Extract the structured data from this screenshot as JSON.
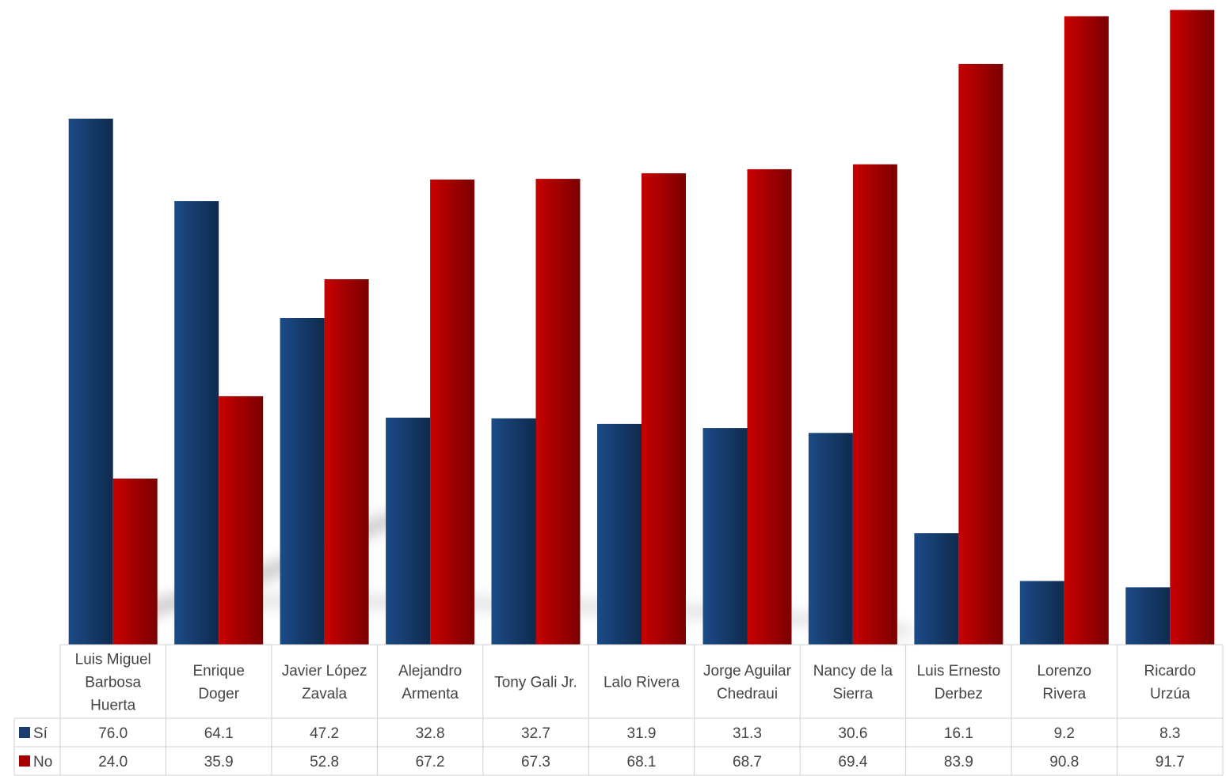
{
  "chart_data": {
    "type": "bar",
    "title": "",
    "xlabel": "",
    "ylabel": "",
    "ylim": [
      0,
      92
    ],
    "grid": false,
    "legend": "data-table",
    "categories": [
      [
        "Luis Miguel",
        "Barbosa",
        "Huerta"
      ],
      [
        "Enrique",
        "Doger"
      ],
      [
        "Javier López",
        "Zavala"
      ],
      [
        "Alejandro",
        "Armenta"
      ],
      [
        "Tony Gali Jr."
      ],
      [
        "Lalo Rivera"
      ],
      [
        "Jorge Aguilar",
        "Chedraui"
      ],
      [
        "Nancy de la",
        "Sierra"
      ],
      [
        "Luis Ernesto",
        "Derbez"
      ],
      [
        "Lorenzo",
        "Rivera"
      ],
      [
        "Ricardo",
        "Urzúa"
      ]
    ],
    "series": [
      {
        "name": "Sí",
        "color": "#1a3d6e",
        "values": [
          76.0,
          64.1,
          47.2,
          32.8,
          32.7,
          31.9,
          31.3,
          30.6,
          16.1,
          9.2,
          8.3
        ],
        "labels": [
          "76.0",
          "64.1",
          "47.2",
          "32.8",
          "32.7",
          "31.9",
          "31.3",
          "30.6",
          "16.1",
          "9.2",
          "8.3"
        ]
      },
      {
        "name": "No",
        "color": "#a80000",
        "values": [
          24.0,
          35.9,
          52.8,
          67.2,
          67.3,
          68.1,
          68.7,
          69.4,
          83.9,
          90.8,
          91.7
        ],
        "labels": [
          "24.0",
          "35.9",
          "52.8",
          "67.2",
          "67.3",
          "68.1",
          "68.7",
          "69.4",
          "83.9",
          "90.8",
          "91.7"
        ]
      }
    ]
  }
}
